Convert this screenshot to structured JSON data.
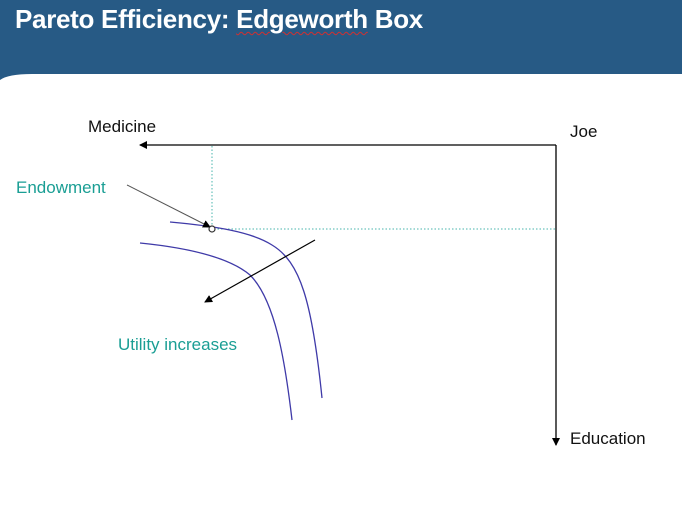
{
  "slide": {
    "title_part1": "Pareto Efficiency: ",
    "title_part2": "Edgeworth",
    "title_part3": " Box",
    "header_color": "#275a85"
  },
  "diagram": {
    "axis_x_label": "Medicine",
    "axis_y_label": "Education",
    "origin_label": "Joe",
    "endowment_label": "Endowment",
    "utility_label": "Utility increases",
    "colors": {
      "axis": "#000000",
      "guide": "#47b4ad",
      "curve": "#3f3aa8",
      "label_accent": "#1a9e94"
    }
  }
}
